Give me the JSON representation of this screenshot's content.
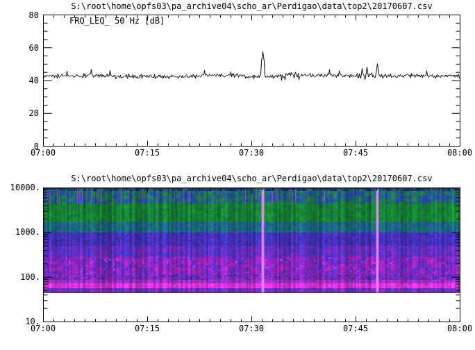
{
  "window": {
    "background": "#ffffff",
    "foreground": "#000000"
  },
  "chart_data": [
    {
      "type": "line",
      "title": "S:\\root\\home\\opfs03\\pa_archive04\\scho_ar\\Perdigao\\data\\top2\\20170607.csv",
      "series_label": "FRQ_LEQ_ 50 Hz [dB]",
      "xlabel": "",
      "ylabel": "",
      "x_ticks": [
        "07:00",
        "07:15",
        "07:30",
        "07:45",
        "08:00"
      ],
      "x_major_step_min": 15,
      "x_minor_step_min": 1.5,
      "xlim_minutes": [
        0,
        60
      ],
      "y_ticks": [
        "80",
        "60",
        "40",
        "20",
        "0"
      ],
      "y_tick_values": [
        80,
        60,
        40,
        20,
        0
      ],
      "y_minor_step": 5,
      "ylim": [
        0,
        80
      ],
      "baseline_db": 43.0,
      "noise_db": 1.6,
      "rough_windows": [
        {
          "from": 34.2,
          "to": 36.9,
          "factor": 1.9
        },
        {
          "from": 43.8,
          "to": 47.2,
          "factor": 1.55
        }
      ],
      "spikes": [
        {
          "time": "07:31.6",
          "minute": 31.6,
          "value_db": 57.5
        },
        {
          "time": "07:48.1",
          "minute": 48.1,
          "value_db": 50.3
        },
        {
          "time": "07:46.6",
          "minute": 46.6,
          "value_db": 48.2
        },
        {
          "time": "07:45.9",
          "minute": 45.9,
          "value_db": 47.4
        },
        {
          "time": "07:06.9",
          "minute": 6.9,
          "value_db": 46.8
        },
        {
          "time": "07:09.6",
          "minute": 9.6,
          "value_db": 46.2
        },
        {
          "time": "07:23.2",
          "minute": 23.2,
          "value_db": 46.3
        },
        {
          "time": "07:41.2",
          "minute": 41.2,
          "value_db": 46.6
        },
        {
          "time": "07:03.4",
          "minute": 3.4,
          "value_db": 45.8
        },
        {
          "time": "07:55.2",
          "minute": 55.2,
          "value_db": 46.0
        }
      ],
      "line_color": "#000000",
      "seed": 7
    },
    {
      "type": "heatmap",
      "title": "S:\\root\\home\\opfs03\\pa_archive04\\scho_ar\\Perdigao\\data\\top2\\20170607.csv",
      "xlabel": "",
      "ylabel": "",
      "x_ticks": [
        "07:00",
        "07:15",
        "07:30",
        "07:45",
        "08:00"
      ],
      "x_major_step_min": 15,
      "x_minor_step_min": 1.5,
      "xlim_minutes": [
        0,
        60
      ],
      "y_ticks": [
        "10000.",
        "1000.",
        "100.",
        "10."
      ],
      "y_tick_values": [
        10000,
        1000,
        100,
        10
      ],
      "y_log": true,
      "ylim": [
        10,
        10000
      ],
      "data_freq_range_hz": [
        45,
        10000
      ],
      "events": [
        {
          "time": "07:31.6",
          "minute": 31.6,
          "description": "broadband transient"
        },
        {
          "time": "07:48.1",
          "minute": 48.1,
          "description": "broadband transient"
        }
      ],
      "event_color": [
        255,
        140,
        255
      ],
      "bands": [
        {
          "f": [
            8500,
            10000
          ],
          "a": [
            24,
            28,
            150
          ],
          "b": [
            34,
            150,
            70
          ],
          "mottle": 1.6,
          "streak_mag": true
        },
        {
          "f": [
            4500,
            8500
          ],
          "a": [
            30,
            150,
            55
          ],
          "b": [
            40,
            70,
            200
          ],
          "mottle": 1.5,
          "streak_mag": true
        },
        {
          "f": [
            1700,
            4500
          ],
          "a": [
            25,
            165,
            48
          ],
          "b": [
            22,
            115,
            70
          ],
          "mottle": 0.9
        },
        {
          "f": [
            1000,
            1700
          ],
          "a": [
            25,
            135,
            100
          ],
          "b": [
            35,
            85,
            180
          ],
          "mottle": 1.0
        },
        {
          "f": [
            500,
            1000
          ],
          "a": [
            45,
            60,
            205
          ],
          "b": [
            100,
            45,
            195
          ],
          "mottle": 1.1
        },
        {
          "f": [
            280,
            500
          ],
          "a": [
            150,
            42,
            205
          ],
          "b": [
            60,
            60,
            215
          ],
          "mottle": 1.3
        },
        {
          "f": [
            115,
            280
          ],
          "a": [
            205,
            35,
            205
          ],
          "b": [
            85,
            50,
            215
          ],
          "mottle": 1.5,
          "hotspot": true
        },
        {
          "f": [
            88,
            115
          ],
          "a": [
            80,
            50,
            205
          ],
          "b": [
            175,
            40,
            205
          ],
          "mottle": 1.3
        },
        {
          "f": [
            72,
            88
          ],
          "a": [
            205,
            45,
            205
          ],
          "b": [
            125,
            60,
            215
          ],
          "mottle": 1.1
        },
        {
          "f": [
            56,
            72
          ],
          "a": [
            252,
            70,
            252
          ],
          "b": [
            225,
            42,
            230
          ],
          "mottle": 0.7
        },
        {
          "f": [
            45,
            56
          ],
          "a": [
            185,
            40,
            205
          ],
          "b": [
            72,
            60,
            205
          ],
          "mottle": 1.5,
          "stripes": true
        }
      ],
      "seeds": {
        "column": 21,
        "texture1": 41,
        "texture2": 42,
        "streak": 31,
        "stripe": 51
      }
    }
  ]
}
